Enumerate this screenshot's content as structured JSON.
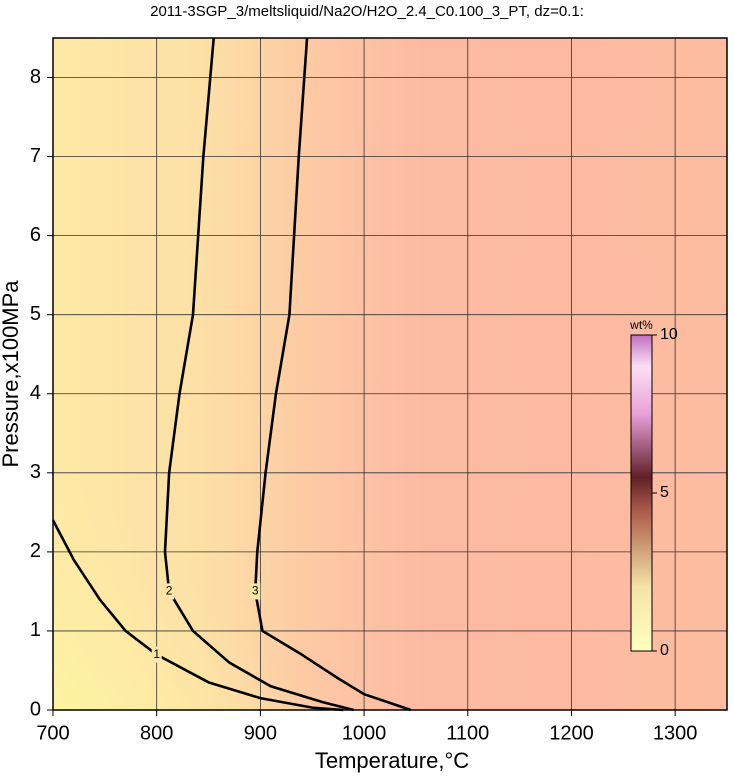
{
  "chart_data": {
    "type": "contour",
    "title": "2011-3SGP_3/meltsliquid/Na2O/H2O_2.4_C0.100_3_PT, dz=0.1:",
    "x_label": "Temperature,°C",
    "y_label": "Pressure,x100MPa",
    "xlim": [
      700,
      1350
    ],
    "ylim": [
      0,
      8.5
    ],
    "xticks": [
      700,
      800,
      900,
      1000,
      1100,
      1200,
      1300
    ],
    "yticks": [
      0,
      1,
      2,
      3,
      4,
      5,
      6,
      7,
      8
    ],
    "grid": true,
    "contours": [
      {
        "level": 1,
        "x": [
          700,
          720,
          745,
          770,
          800,
          850,
          900,
          950,
          980
        ],
        "y": [
          2.4,
          1.9,
          1.4,
          1.0,
          0.7,
          0.35,
          0.15,
          0.03,
          0
        ]
      },
      {
        "level": 2,
        "x": [
          855,
          845,
          835,
          822,
          812,
          808,
          812,
          835,
          870,
          910,
          960,
          990
        ],
        "y": [
          8.5,
          7,
          5,
          4,
          3,
          2,
          1.5,
          1,
          0.6,
          0.3,
          0.1,
          0
        ]
      },
      {
        "level": 3,
        "x": [
          945,
          937,
          928,
          915,
          905,
          897,
          895,
          902,
          940,
          975,
          1000,
          1045
        ],
        "y": [
          8.5,
          7,
          5,
          4,
          3,
          2,
          1.5,
          1,
          0.7,
          0.4,
          0.2,
          0
        ]
      }
    ],
    "colorbar": {
      "label": "wt%",
      "lim": [
        0,
        10
      ],
      "ticks": [
        0,
        5,
        10
      ]
    }
  }
}
